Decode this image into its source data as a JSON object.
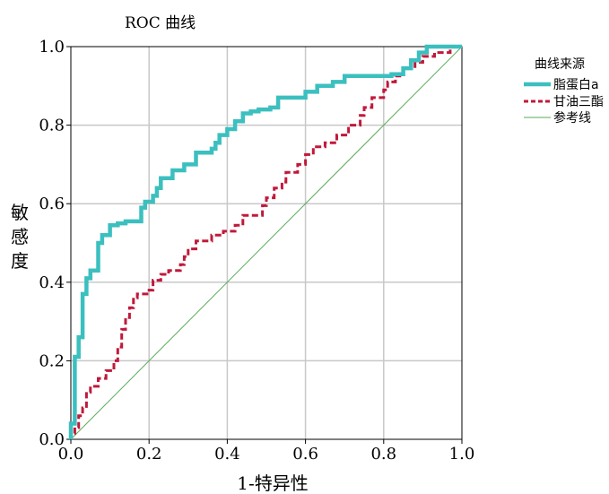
{
  "chart_data": {
    "type": "line",
    "title": "ROC 曲线",
    "xlabel": "1-特异性",
    "ylabel": "敏感度",
    "xlim": [
      0,
      1
    ],
    "ylim": [
      0,
      1
    ],
    "x_ticks": [
      "0.0",
      "0.2",
      "0.4",
      "0.6",
      "0.8",
      "1.0"
    ],
    "y_ticks": [
      "0.0",
      "0.2",
      "0.4",
      "0.6",
      "0.8",
      "1.0"
    ],
    "grid": true,
    "legend": {
      "title": "曲线来源",
      "placement": "top-right"
    },
    "series": [
      {
        "name": "脂蛋白a",
        "color": "#3cbfbf",
        "style": "solid-thick",
        "points": [
          [
            0,
            0
          ],
          [
            0,
            0.04
          ],
          [
            0.01,
            0.04
          ],
          [
            0.01,
            0.21
          ],
          [
            0.02,
            0.21
          ],
          [
            0.02,
            0.26
          ],
          [
            0.03,
            0.26
          ],
          [
            0.03,
            0.37
          ],
          [
            0.04,
            0.37
          ],
          [
            0.04,
            0.41
          ],
          [
            0.05,
            0.41
          ],
          [
            0.05,
            0.43
          ],
          [
            0.07,
            0.43
          ],
          [
            0.07,
            0.5
          ],
          [
            0.08,
            0.5
          ],
          [
            0.08,
            0.52
          ],
          [
            0.1,
            0.52
          ],
          [
            0.1,
            0.545
          ],
          [
            0.12,
            0.545
          ],
          [
            0.12,
            0.55
          ],
          [
            0.14,
            0.55
          ],
          [
            0.14,
            0.555
          ],
          [
            0.18,
            0.555
          ],
          [
            0.18,
            0.59
          ],
          [
            0.19,
            0.59
          ],
          [
            0.19,
            0.605
          ],
          [
            0.21,
            0.605
          ],
          [
            0.21,
            0.62
          ],
          [
            0.22,
            0.62
          ],
          [
            0.22,
            0.64
          ],
          [
            0.23,
            0.64
          ],
          [
            0.23,
            0.665
          ],
          [
            0.26,
            0.665
          ],
          [
            0.26,
            0.685
          ],
          [
            0.29,
            0.685
          ],
          [
            0.29,
            0.7
          ],
          [
            0.32,
            0.7
          ],
          [
            0.32,
            0.73
          ],
          [
            0.36,
            0.73
          ],
          [
            0.36,
            0.74
          ],
          [
            0.37,
            0.74
          ],
          [
            0.37,
            0.755
          ],
          [
            0.38,
            0.755
          ],
          [
            0.38,
            0.775
          ],
          [
            0.4,
            0.775
          ],
          [
            0.4,
            0.79
          ],
          [
            0.42,
            0.79
          ],
          [
            0.42,
            0.81
          ],
          [
            0.44,
            0.81
          ],
          [
            0.44,
            0.83
          ],
          [
            0.46,
            0.83
          ],
          [
            0.46,
            0.835
          ],
          [
            0.48,
            0.835
          ],
          [
            0.48,
            0.84
          ],
          [
            0.51,
            0.84
          ],
          [
            0.51,
            0.845
          ],
          [
            0.53,
            0.845
          ],
          [
            0.53,
            0.87
          ],
          [
            0.6,
            0.87
          ],
          [
            0.6,
            0.885
          ],
          [
            0.63,
            0.885
          ],
          [
            0.63,
            0.9
          ],
          [
            0.67,
            0.9
          ],
          [
            0.67,
            0.91
          ],
          [
            0.7,
            0.91
          ],
          [
            0.7,
            0.925
          ],
          [
            0.82,
            0.925
          ],
          [
            0.82,
            0.93
          ],
          [
            0.85,
            0.93
          ],
          [
            0.85,
            0.945
          ],
          [
            0.87,
            0.945
          ],
          [
            0.87,
            0.965
          ],
          [
            0.89,
            0.965
          ],
          [
            0.89,
            0.985
          ],
          [
            0.91,
            0.985
          ],
          [
            0.91,
            1
          ],
          [
            1,
            1
          ]
        ]
      },
      {
        "name": "甘油三酯",
        "color": "#c0193a",
        "style": "dashed",
        "points": [
          [
            0,
            0
          ],
          [
            0,
            0.015
          ],
          [
            0.01,
            0.015
          ],
          [
            0.01,
            0.03
          ],
          [
            0.02,
            0.03
          ],
          [
            0.02,
            0.06
          ],
          [
            0.03,
            0.06
          ],
          [
            0.03,
            0.08
          ],
          [
            0.04,
            0.08
          ],
          [
            0.04,
            0.12
          ],
          [
            0.05,
            0.12
          ],
          [
            0.05,
            0.135
          ],
          [
            0.07,
            0.135
          ],
          [
            0.07,
            0.155
          ],
          [
            0.09,
            0.155
          ],
          [
            0.09,
            0.175
          ],
          [
            0.11,
            0.175
          ],
          [
            0.11,
            0.2
          ],
          [
            0.12,
            0.2
          ],
          [
            0.12,
            0.235
          ],
          [
            0.13,
            0.235
          ],
          [
            0.13,
            0.28
          ],
          [
            0.14,
            0.28
          ],
          [
            0.14,
            0.31
          ],
          [
            0.15,
            0.31
          ],
          [
            0.15,
            0.335
          ],
          [
            0.16,
            0.335
          ],
          [
            0.16,
            0.36
          ],
          [
            0.17,
            0.36
          ],
          [
            0.17,
            0.37
          ],
          [
            0.2,
            0.37
          ],
          [
            0.2,
            0.38
          ],
          [
            0.21,
            0.38
          ],
          [
            0.21,
            0.405
          ],
          [
            0.23,
            0.405
          ],
          [
            0.23,
            0.42
          ],
          [
            0.25,
            0.42
          ],
          [
            0.25,
            0.43
          ],
          [
            0.28,
            0.43
          ],
          [
            0.28,
            0.445
          ],
          [
            0.29,
            0.445
          ],
          [
            0.29,
            0.465
          ],
          [
            0.3,
            0.465
          ],
          [
            0.3,
            0.485
          ],
          [
            0.32,
            0.485
          ],
          [
            0.32,
            0.505
          ],
          [
            0.36,
            0.505
          ],
          [
            0.36,
            0.52
          ],
          [
            0.39,
            0.52
          ],
          [
            0.39,
            0.53
          ],
          [
            0.42,
            0.53
          ],
          [
            0.42,
            0.545
          ],
          [
            0.44,
            0.545
          ],
          [
            0.44,
            0.57
          ],
          [
            0.49,
            0.57
          ],
          [
            0.49,
            0.595
          ],
          [
            0.5,
            0.595
          ],
          [
            0.5,
            0.615
          ],
          [
            0.52,
            0.615
          ],
          [
            0.52,
            0.64
          ],
          [
            0.54,
            0.64
          ],
          [
            0.54,
            0.655
          ],
          [
            0.55,
            0.655
          ],
          [
            0.55,
            0.68
          ],
          [
            0.58,
            0.68
          ],
          [
            0.58,
            0.7
          ],
          [
            0.6,
            0.7
          ],
          [
            0.6,
            0.725
          ],
          [
            0.62,
            0.725
          ],
          [
            0.62,
            0.745
          ],
          [
            0.65,
            0.745
          ],
          [
            0.65,
            0.755
          ],
          [
            0.68,
            0.755
          ],
          [
            0.68,
            0.775
          ],
          [
            0.71,
            0.775
          ],
          [
            0.71,
            0.8
          ],
          [
            0.74,
            0.8
          ],
          [
            0.74,
            0.825
          ],
          [
            0.75,
            0.825
          ],
          [
            0.75,
            0.845
          ],
          [
            0.77,
            0.845
          ],
          [
            0.77,
            0.87
          ],
          [
            0.8,
            0.87
          ],
          [
            0.8,
            0.89
          ],
          [
            0.81,
            0.89
          ],
          [
            0.81,
            0.91
          ],
          [
            0.83,
            0.91
          ],
          [
            0.83,
            0.925
          ],
          [
            0.85,
            0.925
          ],
          [
            0.85,
            0.945
          ],
          [
            0.88,
            0.945
          ],
          [
            0.88,
            0.96
          ],
          [
            0.9,
            0.96
          ],
          [
            0.9,
            0.975
          ],
          [
            0.93,
            0.975
          ],
          [
            0.93,
            0.985
          ],
          [
            0.97,
            0.985
          ],
          [
            0.97,
            1
          ],
          [
            1,
            1
          ]
        ]
      },
      {
        "name": "参考线",
        "color": "#5aaa5a",
        "style": "thin",
        "points": [
          [
            0,
            0
          ],
          [
            1,
            1
          ]
        ]
      }
    ]
  }
}
